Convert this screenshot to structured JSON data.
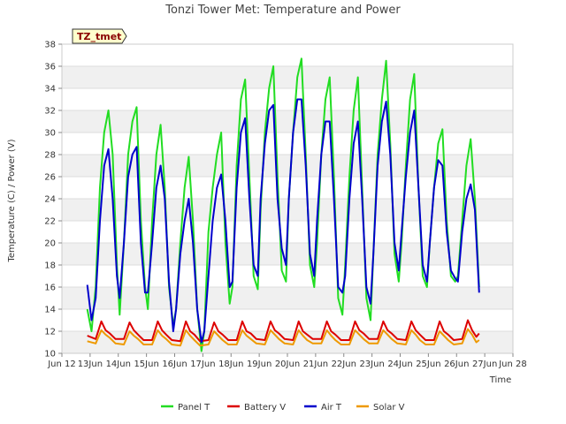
{
  "chart_data": {
    "type": "line",
    "title": "Tonzi Tower Met: Temperature and Power",
    "xlabel": "Time",
    "ylabel": "Temperature (C) / Power (V)",
    "site_tag": "TZ_tmet",
    "xlim": [
      12,
      28
    ],
    "ylim": [
      10,
      38
    ],
    "x_ticks": [
      {
        "value": 12,
        "label": "Jun 12"
      },
      {
        "value": 13,
        "label": "13Jun"
      },
      {
        "value": 14,
        "label": "14Jun"
      },
      {
        "value": 15,
        "label": "15Jun"
      },
      {
        "value": 16,
        "label": "16Jun"
      },
      {
        "value": 17,
        "label": "17Jun"
      },
      {
        "value": 18,
        "label": "18Jun"
      },
      {
        "value": 19,
        "label": "19Jun"
      },
      {
        "value": 20,
        "label": "20Jun"
      },
      {
        "value": 21,
        "label": "21Jun"
      },
      {
        "value": 22,
        "label": "22Jun"
      },
      {
        "value": 23,
        "label": "23Jun"
      },
      {
        "value": 24,
        "label": "24Jun"
      },
      {
        "value": 25,
        "label": "25Jun"
      },
      {
        "value": 26,
        "label": "26Jun"
      },
      {
        "value": 27,
        "label": "27Jun"
      },
      {
        "value": 28,
        "label": "Jun 28"
      }
    ],
    "y_ticks": [
      10,
      12,
      14,
      16,
      18,
      20,
      22,
      24,
      26,
      28,
      30,
      32,
      34,
      36,
      38
    ],
    "grid": true,
    "legend_position": "bottom",
    "series": [
      {
        "name": "Panel T",
        "color": "#22dd22",
        "x": [
          12.9,
          13.05,
          13.2,
          13.35,
          13.5,
          13.65,
          13.8,
          13.95,
          14.05,
          14.2,
          14.35,
          14.5,
          14.65,
          14.8,
          14.95,
          15.05,
          15.2,
          15.35,
          15.5,
          15.65,
          15.8,
          15.95,
          16.05,
          16.2,
          16.35,
          16.5,
          16.65,
          16.8,
          16.95,
          17.05,
          17.2,
          17.35,
          17.5,
          17.65,
          17.8,
          17.95,
          18.05,
          18.2,
          18.35,
          18.5,
          18.65,
          18.8,
          18.95,
          19.05,
          19.2,
          19.35,
          19.5,
          19.65,
          19.8,
          19.95,
          20.05,
          20.2,
          20.35,
          20.5,
          20.65,
          20.8,
          20.95,
          21.05,
          21.2,
          21.35,
          21.5,
          21.65,
          21.8,
          21.95,
          22.05,
          22.2,
          22.35,
          22.5,
          22.65,
          22.8,
          22.95,
          23.05,
          23.2,
          23.35,
          23.5,
          23.65,
          23.8,
          23.95,
          24.05,
          24.2,
          24.35,
          24.5,
          24.65,
          24.8,
          24.95,
          25.05,
          25.2,
          25.35,
          25.5,
          25.65,
          25.8,
          25.95,
          26.05,
          26.2,
          26.35,
          26.5,
          26.65,
          26.8
        ],
        "values": [
          14,
          12,
          16,
          25,
          30,
          32,
          28,
          18,
          13.5,
          20,
          28,
          31,
          32.3,
          22,
          16,
          14,
          22,
          28,
          30.7,
          25,
          16,
          12.5,
          14,
          20,
          25,
          27.8,
          22,
          14,
          10.2,
          12,
          21,
          25,
          28,
          30,
          20,
          14.5,
          16,
          27,
          33,
          34.8,
          26,
          17,
          15.8,
          23,
          30,
          34,
          36,
          26,
          17.5,
          16.5,
          24,
          30,
          35,
          36.7,
          28,
          18,
          16,
          20,
          28,
          33,
          35,
          26,
          15,
          13.5,
          18,
          26,
          32,
          35,
          25,
          15,
          13,
          19,
          28,
          33,
          36.5,
          29,
          19,
          16.5,
          20,
          27,
          33,
          35.3,
          25,
          17,
          16,
          20,
          25,
          29,
          30.3,
          22,
          17,
          16.5,
          17,
          22,
          27,
          29.4,
          24,
          16
        ]
      },
      {
        "name": "Battery V",
        "color": "#dd0000",
        "x": [
          12.9,
          13.2,
          13.4,
          13.55,
          13.7,
          13.9,
          14.2,
          14.4,
          14.55,
          14.7,
          14.9,
          15.2,
          15.4,
          15.55,
          15.7,
          15.9,
          16.2,
          16.4,
          16.55,
          16.7,
          16.9,
          17.2,
          17.4,
          17.55,
          17.7,
          17.9,
          18.2,
          18.4,
          18.55,
          18.7,
          18.9,
          19.2,
          19.4,
          19.55,
          19.7,
          19.9,
          20.2,
          20.4,
          20.55,
          20.7,
          20.9,
          21.2,
          21.4,
          21.55,
          21.7,
          21.9,
          22.2,
          22.4,
          22.55,
          22.7,
          22.9,
          23.2,
          23.4,
          23.55,
          23.7,
          23.9,
          24.2,
          24.4,
          24.55,
          24.7,
          24.9,
          25.2,
          25.4,
          25.55,
          25.7,
          25.9,
          26.2,
          26.4,
          26.55,
          26.7,
          26.8
        ],
        "values": [
          11.6,
          11.3,
          12.9,
          12.1,
          11.8,
          11.3,
          11.3,
          12.8,
          12.1,
          11.7,
          11.2,
          11.2,
          12.9,
          12.1,
          11.7,
          11.2,
          11.1,
          12.9,
          12.0,
          11.7,
          11.1,
          11.2,
          12.8,
          12.0,
          11.7,
          11.2,
          11.2,
          12.9,
          12.0,
          11.8,
          11.3,
          11.2,
          12.9,
          12.1,
          11.8,
          11.3,
          11.2,
          12.9,
          12.0,
          11.7,
          11.3,
          11.3,
          12.9,
          12.0,
          11.7,
          11.2,
          11.2,
          12.9,
          12.1,
          11.8,
          11.3,
          11.3,
          12.9,
          12.1,
          11.8,
          11.3,
          11.2,
          12.9,
          12.1,
          11.7,
          11.2,
          11.2,
          12.9,
          12.0,
          11.7,
          11.2,
          11.3,
          13.0,
          12.1,
          11.5,
          11.8
        ]
      },
      {
        "name": "Air T",
        "color": "#0000cc",
        "x": [
          12.9,
          13.05,
          13.2,
          13.35,
          13.5,
          13.65,
          13.8,
          13.95,
          14.05,
          14.2,
          14.35,
          14.5,
          14.65,
          14.8,
          14.95,
          15.05,
          15.2,
          15.35,
          15.5,
          15.65,
          15.8,
          15.95,
          16.05,
          16.2,
          16.35,
          16.5,
          16.65,
          16.8,
          16.95,
          17.05,
          17.2,
          17.35,
          17.5,
          17.65,
          17.8,
          17.95,
          18.05,
          18.2,
          18.35,
          18.5,
          18.65,
          18.8,
          18.95,
          19.05,
          19.2,
          19.35,
          19.5,
          19.65,
          19.8,
          19.95,
          20.05,
          20.2,
          20.35,
          20.5,
          20.65,
          20.8,
          20.95,
          21.05,
          21.2,
          21.35,
          21.5,
          21.65,
          21.8,
          21.95,
          22.05,
          22.2,
          22.35,
          22.5,
          22.65,
          22.8,
          22.95,
          23.05,
          23.2,
          23.35,
          23.5,
          23.65,
          23.8,
          23.95,
          24.05,
          24.2,
          24.35,
          24.5,
          24.65,
          24.8,
          24.95,
          25.05,
          25.2,
          25.35,
          25.5,
          25.65,
          25.8,
          25.95,
          26.05,
          26.2,
          26.35,
          26.5,
          26.65,
          26.8
        ],
        "values": [
          16.2,
          13,
          15,
          22,
          27,
          28.5,
          24,
          17,
          15,
          20,
          26,
          28,
          28.7,
          20,
          15.5,
          15.5,
          20,
          25,
          27,
          24,
          16.5,
          12,
          14,
          19,
          22,
          24,
          20,
          14,
          11,
          12,
          17,
          22,
          25,
          26.2,
          22,
          16,
          16.5,
          25,
          30,
          31.3,
          24,
          18,
          17,
          24,
          29,
          32,
          32.5,
          24,
          19.5,
          18,
          24,
          30,
          33,
          33,
          27,
          19,
          17,
          22,
          28,
          31,
          31,
          24,
          16,
          15.5,
          17,
          24,
          29,
          31,
          24,
          16,
          14.5,
          19,
          27,
          31,
          32.8,
          28,
          20,
          17.5,
          21,
          26,
          30,
          32,
          25,
          18,
          16.5,
          20,
          25,
          27.5,
          27,
          21,
          17.5,
          16.8,
          16.5,
          21,
          24,
          25.3,
          23,
          15.5
        ]
      },
      {
        "name": "Solar V",
        "color": "#ee9900",
        "x": [
          12.9,
          13.2,
          13.4,
          13.55,
          13.7,
          13.9,
          14.2,
          14.4,
          14.55,
          14.7,
          14.9,
          15.2,
          15.4,
          15.55,
          15.7,
          15.9,
          16.2,
          16.4,
          16.55,
          16.7,
          16.9,
          17.2,
          17.4,
          17.55,
          17.7,
          17.9,
          18.2,
          18.4,
          18.55,
          18.7,
          18.9,
          19.2,
          19.4,
          19.55,
          19.7,
          19.9,
          20.2,
          20.4,
          20.55,
          20.7,
          20.9,
          21.2,
          21.4,
          21.55,
          21.7,
          21.9,
          22.2,
          22.4,
          22.55,
          22.7,
          22.9,
          23.2,
          23.4,
          23.55,
          23.7,
          23.9,
          24.2,
          24.4,
          24.55,
          24.7,
          24.9,
          25.2,
          25.4,
          25.55,
          25.7,
          25.9,
          26.2,
          26.4,
          26.55,
          26.7,
          26.8
        ],
        "values": [
          11.1,
          10.9,
          12.1,
          11.7,
          11.4,
          10.9,
          10.8,
          12.0,
          11.6,
          11.3,
          10.8,
          10.8,
          12.1,
          11.6,
          11.3,
          10.8,
          10.7,
          12.1,
          11.6,
          11.2,
          10.7,
          10.8,
          12.0,
          11.6,
          11.2,
          10.8,
          10.8,
          12.1,
          11.6,
          11.3,
          10.9,
          10.8,
          12.1,
          11.7,
          11.3,
          10.9,
          10.8,
          12.1,
          11.6,
          11.2,
          10.9,
          10.9,
          12.1,
          11.6,
          11.2,
          10.8,
          10.8,
          12.1,
          11.7,
          11.3,
          10.9,
          10.9,
          12.1,
          11.7,
          11.3,
          10.9,
          10.8,
          12.1,
          11.7,
          11.2,
          10.8,
          10.8,
          12.0,
          11.6,
          11.2,
          10.8,
          10.9,
          12.2,
          11.7,
          11.0,
          11.2
        ]
      }
    ]
  }
}
